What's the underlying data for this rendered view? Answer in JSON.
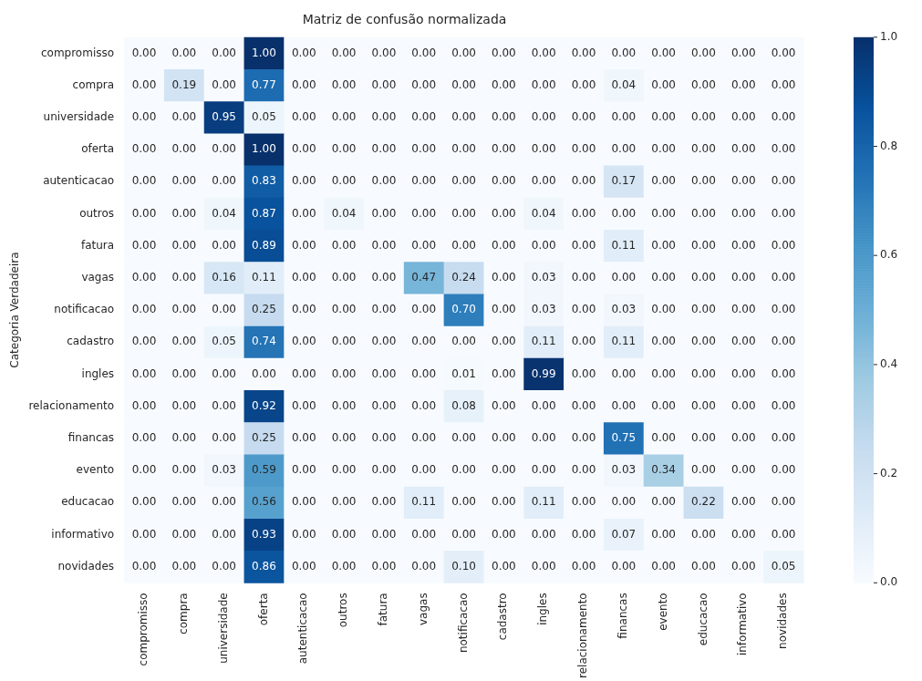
{
  "chart_data": {
    "type": "heatmap",
    "title": "Matriz de confusão normalizada",
    "ylabel": "Categoria Verdadeira",
    "categories": [
      "compromisso",
      "compra",
      "universidade",
      "oferta",
      "autenticacao",
      "outros",
      "fatura",
      "vagas",
      "notificacao",
      "cadastro",
      "ingles",
      "relacionamento",
      "financas",
      "evento",
      "educacao",
      "informativo",
      "novidades"
    ],
    "y_categories": [
      "compromisso",
      "compra",
      "universidade",
      "oferta",
      "autenticacao",
      "outros",
      "fatura",
      "vagas",
      "notificacao",
      "cadastro",
      "ingles",
      "relacionamento",
      "financas",
      "evento",
      "educacao",
      "informativo",
      "novidades"
    ],
    "cells": [
      [
        0,
        0,
        0,
        1,
        0,
        0,
        0,
        0,
        0,
        0,
        0,
        0,
        0,
        0,
        0,
        0,
        0
      ],
      [
        0,
        0.19,
        0,
        0.77,
        0,
        0,
        0,
        0,
        0,
        0,
        0,
        0,
        0.04,
        0,
        0,
        0,
        0
      ],
      [
        0,
        0,
        0.95,
        0.05,
        0,
        0,
        0,
        0,
        0,
        0,
        0,
        0,
        0,
        0,
        0,
        0,
        0
      ],
      [
        0,
        0,
        0,
        1,
        0,
        0,
        0,
        0,
        0,
        0,
        0,
        0,
        0,
        0,
        0,
        0,
        0
      ],
      [
        0,
        0,
        0,
        0.83,
        0,
        0,
        0,
        0,
        0,
        0,
        0,
        0,
        0.17,
        0,
        0,
        0,
        0
      ],
      [
        0,
        0,
        0.04,
        0.87,
        0,
        0.04,
        0,
        0,
        0,
        0,
        0.04,
        0,
        0,
        0,
        0,
        0,
        0
      ],
      [
        0,
        0,
        0,
        0.89,
        0,
        0,
        0,
        0,
        0,
        0,
        0,
        0,
        0.11,
        0,
        0,
        0,
        0
      ],
      [
        0,
        0,
        0.16,
        0.11,
        0,
        0,
        0,
        0.47,
        0.24,
        0,
        0.03,
        0,
        0,
        0,
        0,
        0,
        0
      ],
      [
        0,
        0,
        0,
        0.25,
        0,
        0,
        0,
        0,
        0.7,
        0,
        0.03,
        0,
        0.03,
        0,
        0,
        0,
        0
      ],
      [
        0,
        0,
        0.05,
        0.74,
        0,
        0,
        0,
        0,
        0,
        0,
        0.11,
        0,
        0.11,
        0,
        0,
        0,
        0
      ],
      [
        0,
        0,
        0,
        0,
        0,
        0,
        0,
        0,
        0.01,
        0,
        0.99,
        0,
        0,
        0,
        0,
        0,
        0
      ],
      [
        0,
        0,
        0,
        0.92,
        0,
        0,
        0,
        0,
        0.08,
        0,
        0,
        0,
        0,
        0,
        0,
        0,
        0
      ],
      [
        0,
        0,
        0,
        0.25,
        0,
        0,
        0,
        0,
        0,
        0,
        0,
        0,
        0.75,
        0,
        0,
        0,
        0
      ],
      [
        0,
        0,
        0.03,
        0.59,
        0,
        0,
        0,
        0,
        0,
        0,
        0,
        0,
        0.03,
        0.34,
        0,
        0,
        0
      ],
      [
        0,
        0,
        0,
        0.56,
        0,
        0,
        0,
        0.11,
        0,
        0,
        0.11,
        0,
        0,
        0,
        0.22,
        0,
        0
      ],
      [
        0,
        0,
        0,
        0.93,
        0,
        0,
        0,
        0,
        0,
        0,
        0,
        0,
        0.07,
        0,
        0,
        0,
        0
      ],
      [
        0,
        0,
        0,
        0.86,
        0,
        0,
        0,
        0,
        0.1,
        0,
        0,
        0,
        0,
        0,
        0,
        0,
        0.05
      ]
    ],
    "cell_labels": [
      [
        "0.00",
        "0.00",
        "0.00",
        "1.00",
        "0.00",
        "0.00",
        "0.00",
        "0.00",
        "0.00",
        "0.00",
        "0.00",
        "0.00",
        "0.00",
        "0.00",
        "0.00",
        "0.00",
        "0.00"
      ],
      [
        "0.00",
        "0.19",
        "0.00",
        "0.77",
        "0.00",
        "0.00",
        "0.00",
        "0.00",
        "0.00",
        "0.00",
        "0.00",
        "0.00",
        "0.04",
        "0.00",
        "0.00",
        "0.00",
        "0.00"
      ],
      [
        "0.00",
        "0.00",
        "0.95",
        "0.05",
        "0.00",
        "0.00",
        "0.00",
        "0.00",
        "0.00",
        "0.00",
        "0.00",
        "0.00",
        "0.00",
        "0.00",
        "0.00",
        "0.00",
        "0.00"
      ],
      [
        "0.00",
        "0.00",
        "0.00",
        "1.00",
        "0.00",
        "0.00",
        "0.00",
        "0.00",
        "0.00",
        "0.00",
        "0.00",
        "0.00",
        "0.00",
        "0.00",
        "0.00",
        "0.00",
        "0.00"
      ],
      [
        "0.00",
        "0.00",
        "0.00",
        "0.83",
        "0.00",
        "0.00",
        "0.00",
        "0.00",
        "0.00",
        "0.00",
        "0.00",
        "0.00",
        "0.17",
        "0.00",
        "0.00",
        "0.00",
        "0.00"
      ],
      [
        "0.00",
        "0.00",
        "0.04",
        "0.87",
        "0.00",
        "0.04",
        "0.00",
        "0.00",
        "0.00",
        "0.00",
        "0.04",
        "0.00",
        "0.00",
        "0.00",
        "0.00",
        "0.00",
        "0.00"
      ],
      [
        "0.00",
        "0.00",
        "0.00",
        "0.89",
        "0.00",
        "0.00",
        "0.00",
        "0.00",
        "0.00",
        "0.00",
        "0.00",
        "0.00",
        "0.11",
        "0.00",
        "0.00",
        "0.00",
        "0.00"
      ],
      [
        "0.00",
        "0.00",
        "0.16",
        "0.11",
        "0.00",
        "0.00",
        "0.00",
        "0.47",
        "0.24",
        "0.00",
        "0.03",
        "0.00",
        "0.00",
        "0.00",
        "0.00",
        "0.00",
        "0.00"
      ],
      [
        "0.00",
        "0.00",
        "0.00",
        "0.25",
        "0.00",
        "0.00",
        "0.00",
        "0.00",
        "0.70",
        "0.00",
        "0.03",
        "0.00",
        "0.03",
        "0.00",
        "0.00",
        "0.00",
        "0.00"
      ],
      [
        "0.00",
        "0.00",
        "0.05",
        "0.74",
        "0.00",
        "0.00",
        "0.00",
        "0.00",
        "0.00",
        "0.00",
        "0.11",
        "0.00",
        "0.11",
        "0.00",
        "0.00",
        "0.00",
        "0.00"
      ],
      [
        "0.00",
        "0.00",
        "0.00",
        "0.00",
        "0.00",
        "0.00",
        "0.00",
        "0.00",
        "0.01",
        "0.00",
        "0.99",
        "0.00",
        "0.00",
        "0.00",
        "0.00",
        "0.00",
        "0.00"
      ],
      [
        "0.00",
        "0.00",
        "0.00",
        "0.92",
        "0.00",
        "0.00",
        "0.00",
        "0.00",
        "0.08",
        "0.00",
        "0.00",
        "0.00",
        "0.00",
        "0.00",
        "0.00",
        "0.00",
        "0.00"
      ],
      [
        "0.00",
        "0.00",
        "0.00",
        "0.25",
        "0.00",
        "0.00",
        "0.00",
        "0.00",
        "0.00",
        "0.00",
        "0.00",
        "0.00",
        "0.75",
        "0.00",
        "0.00",
        "0.00",
        "0.00"
      ],
      [
        "0.00",
        "0.00",
        "0.03",
        "0.59",
        "0.00",
        "0.00",
        "0.00",
        "0.00",
        "0.00",
        "0.00",
        "0.00",
        "0.00",
        "0.03",
        "0.34",
        "0.00",
        "0.00",
        "0.00"
      ],
      [
        "0.00",
        "0.00",
        "0.00",
        "0.56",
        "0.00",
        "0.00",
        "0.00",
        "0.11",
        "0.00",
        "0.00",
        "0.11",
        "0.00",
        "0.00",
        "0.00",
        "0.22",
        "0.00",
        "0.00"
      ],
      [
        "0.00",
        "0.00",
        "0.00",
        "0.93",
        "0.00",
        "0.00",
        "0.00",
        "0.00",
        "0.00",
        "0.00",
        "0.00",
        "0.00",
        "0.07",
        "0.00",
        "0.00",
        "0.00",
        "0.00"
      ],
      [
        "0.00",
        "0.00",
        "0.00",
        "0.86",
        "0.00",
        "0.00",
        "0.00",
        "0.00",
        "0.10",
        "0.00",
        "0.00",
        "0.00",
        "0.00",
        "0.00",
        "0.00",
        "0.00",
        "0.05"
      ]
    ],
    "clim": [
      0,
      1
    ],
    "cticks": [
      {
        "value": 0,
        "label": "0.0"
      },
      {
        "value": 0.2,
        "label": "0.2"
      },
      {
        "value": 0.4,
        "label": "0.4"
      },
      {
        "value": 0.6,
        "label": "0.6"
      },
      {
        "value": 0.8,
        "label": "0.8"
      },
      {
        "value": 1,
        "label": "1.0"
      }
    ]
  }
}
